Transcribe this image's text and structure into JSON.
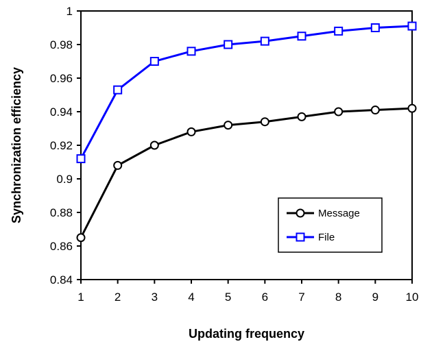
{
  "chart_data": {
    "type": "line",
    "title": "",
    "xlabel": "Updating frequency",
    "ylabel": "Synchronization efficiency",
    "x": [
      1,
      2,
      3,
      4,
      5,
      6,
      7,
      8,
      9,
      10
    ],
    "xlim": [
      1,
      10
    ],
    "ylim": [
      0.84,
      1
    ],
    "yticks": [
      "0.84",
      "0.86",
      "0.88",
      "0.9",
      "0.92",
      "0.94",
      "0.96",
      "0.98",
      "1"
    ],
    "xticks": [
      "1",
      "2",
      "3",
      "4",
      "5",
      "6",
      "7",
      "8",
      "9",
      "10"
    ],
    "grid": false,
    "legend_position": "bottom-right",
    "series": [
      {
        "name": "Message",
        "color": "#000000",
        "marker": "circle",
        "values": [
          0.865,
          0.908,
          0.92,
          0.928,
          0.932,
          0.934,
          0.937,
          0.94,
          0.941,
          0.942
        ]
      },
      {
        "name": "File",
        "color": "#0000ff",
        "marker": "square",
        "values": [
          0.912,
          0.953,
          0.97,
          0.976,
          0.98,
          0.982,
          0.985,
          0.988,
          0.99,
          0.991
        ]
      }
    ]
  }
}
